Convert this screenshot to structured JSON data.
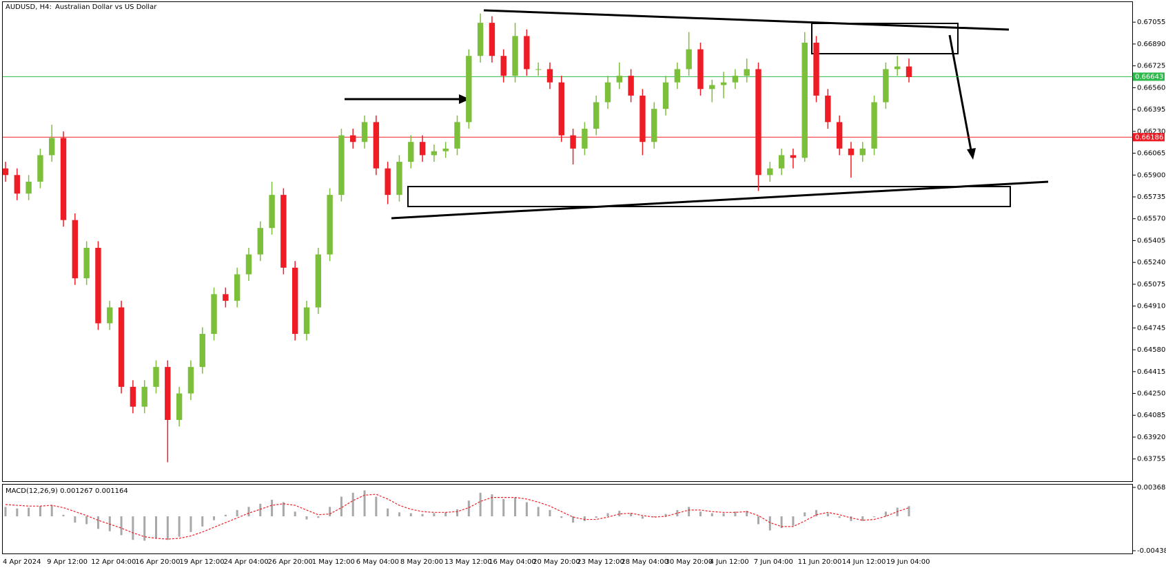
{
  "chart_data": [
    {
      "type": "candlestick",
      "symbol": "AUDUSD, H4:",
      "title": "Australian Dollar vs US Dollar",
      "up_color": "#7cbf3a",
      "down_color": "#ee1c25",
      "ylim": [
        0.63587,
        0.67212
      ],
      "yticks": [
        0.67055,
        {
          "value": 0.6689,
          "label": "0.66890"
        },
        0.66725,
        {
          "value": 0.6656,
          "label": "0.66560"
        },
        0.66395,
        {
          "value": 0.6623,
          "label": "0.66230"
        },
        0.66065,
        {
          "value": 0.659,
          "label": "0.65900"
        },
        0.65735,
        {
          "value": 0.6557,
          "label": "0.65570"
        },
        0.65405,
        {
          "value": 0.6524,
          "label": "0.65240"
        },
        0.65075,
        {
          "value": 0.6491,
          "label": "0.64910"
        },
        0.64745,
        {
          "value": 0.6458,
          "label": "0.64580"
        },
        0.64415,
        {
          "value": 0.6425,
          "label": "0.64250"
        },
        0.64085,
        {
          "value": 0.6392,
          "label": "0.63920"
        },
        0.63755
      ],
      "hlines": [
        {
          "value": 0.66643,
          "color": "#2db84a"
        },
        {
          "value": 0.66186,
          "color": "#ee1c25"
        }
      ],
      "x_labels": [
        "4 Apr 2024",
        "9 Apr 12:00",
        "12 Apr 04:00",
        "16 Apr 20:00",
        "19 Apr 12:00",
        "24 Apr 04:00",
        "26 Apr 20:00",
        "1 May 12:00",
        "6 May 04:00",
        "8 May 20:00",
        "13 May 12:00",
        "16 May 04:00",
        "20 May 20:00",
        "23 May 12:00",
        "28 May 04:00",
        "30 May 20:00",
        "4 Jun 12:00",
        "7 Jun 04:00",
        "11 Jun 20:00",
        "14 Jun 12:00",
        "19 Jun 04:00"
      ],
      "ohlc": [
        [
          0.6595,
          0.66,
          0.6585,
          0.659
        ],
        [
          0.659,
          0.6595,
          0.6571,
          0.6576
        ],
        [
          0.6576,
          0.659,
          0.6571,
          0.6585
        ],
        [
          0.6585,
          0.661,
          0.658,
          0.6605
        ],
        [
          0.6605,
          0.6628,
          0.66,
          0.6618
        ],
        [
          0.6618,
          0.6623,
          0.6551,
          0.6556
        ],
        [
          0.6556,
          0.6561,
          0.6507,
          0.6512
        ],
        [
          0.6512,
          0.654,
          0.6507,
          0.6535
        ],
        [
          0.6535,
          0.654,
          0.6473,
          0.6478
        ],
        [
          0.6478,
          0.6495,
          0.6473,
          0.649
        ],
        [
          0.649,
          0.6495,
          0.6425,
          0.643
        ],
        [
          0.643,
          0.6435,
          0.641,
          0.6415
        ],
        [
          0.6415,
          0.6435,
          0.641,
          0.643
        ],
        [
          0.643,
          0.645,
          0.6425,
          0.6445
        ],
        [
          0.6445,
          0.645,
          0.6373,
          0.6405
        ],
        [
          0.6405,
          0.643,
          0.64,
          0.6425
        ],
        [
          0.6425,
          0.645,
          0.642,
          0.6445
        ],
        [
          0.6445,
          0.6475,
          0.644,
          0.647
        ],
        [
          0.647,
          0.6505,
          0.6465,
          0.65
        ],
        [
          0.65,
          0.6505,
          0.649,
          0.6495
        ],
        [
          0.6495,
          0.652,
          0.649,
          0.6515
        ],
        [
          0.6515,
          0.6535,
          0.651,
          0.653
        ],
        [
          0.653,
          0.6555,
          0.6525,
          0.655
        ],
        [
          0.655,
          0.6585,
          0.6545,
          0.6575
        ],
        [
          0.6575,
          0.658,
          0.6515,
          0.652
        ],
        [
          0.652,
          0.6525,
          0.6465,
          0.647
        ],
        [
          0.647,
          0.6495,
          0.6465,
          0.649
        ],
        [
          0.649,
          0.6535,
          0.6485,
          0.653
        ],
        [
          0.653,
          0.658,
          0.6525,
          0.6575
        ],
        [
          0.6575,
          0.6625,
          0.657,
          0.662
        ],
        [
          0.662,
          0.6625,
          0.661,
          0.6615
        ],
        [
          0.6615,
          0.6635,
          0.661,
          0.663
        ],
        [
          0.663,
          0.6635,
          0.659,
          0.6595
        ],
        [
          0.6595,
          0.66,
          0.6568,
          0.6575
        ],
        [
          0.6575,
          0.6605,
          0.657,
          0.66
        ],
        [
          0.66,
          0.662,
          0.6595,
          0.6615
        ],
        [
          0.6615,
          0.662,
          0.66,
          0.6605
        ],
        [
          0.6605,
          0.6613,
          0.66,
          0.6608
        ],
        [
          0.6608,
          0.6615,
          0.6603,
          0.661
        ],
        [
          0.661,
          0.6635,
          0.6605,
          0.663
        ],
        [
          0.663,
          0.6685,
          0.6625,
          0.668
        ],
        [
          0.668,
          0.6712,
          0.6675,
          0.6705
        ],
        [
          0.6705,
          0.671,
          0.6675,
          0.668
        ],
        [
          0.668,
          0.6685,
          0.666,
          0.6665
        ],
        [
          0.6665,
          0.6705,
          0.666,
          0.6695
        ],
        [
          0.6695,
          0.67,
          0.6665,
          0.667
        ],
        [
          0.667,
          0.6675,
          0.6665,
          0.667
        ],
        [
          0.667,
          0.6675,
          0.6655,
          0.666
        ],
        [
          0.666,
          0.6665,
          0.6615,
          0.662
        ],
        [
          0.662,
          0.6625,
          0.6598,
          0.661
        ],
        [
          0.661,
          0.663,
          0.6605,
          0.6625
        ],
        [
          0.6625,
          0.665,
          0.662,
          0.6645
        ],
        [
          0.6645,
          0.6665,
          0.664,
          0.666
        ],
        [
          0.666,
          0.6675,
          0.6655,
          0.6665
        ],
        [
          0.6665,
          0.667,
          0.6645,
          0.665
        ],
        [
          0.665,
          0.6655,
          0.6605,
          0.6615
        ],
        [
          0.6615,
          0.6645,
          0.661,
          0.664
        ],
        [
          0.664,
          0.6665,
          0.6635,
          0.666
        ],
        [
          0.666,
          0.6675,
          0.6655,
          0.667
        ],
        [
          0.667,
          0.6698,
          0.6665,
          0.6685
        ],
        [
          0.6685,
          0.669,
          0.665,
          0.6655
        ],
        [
          0.6655,
          0.6662,
          0.6645,
          0.6658
        ],
        [
          0.6658,
          0.6668,
          0.6648,
          0.666
        ],
        [
          0.666,
          0.667,
          0.6655,
          0.6665
        ],
        [
          0.6665,
          0.6678,
          0.666,
          0.667
        ],
        [
          0.667,
          0.6675,
          0.6578,
          0.659
        ],
        [
          0.659,
          0.66,
          0.6585,
          0.6595
        ],
        [
          0.6595,
          0.661,
          0.659,
          0.6605
        ],
        [
          0.6605,
          0.661,
          0.6595,
          0.6603
        ],
        [
          0.6603,
          0.6698,
          0.66,
          0.669
        ],
        [
          0.669,
          0.6695,
          0.6645,
          0.665
        ],
        [
          0.665,
          0.6655,
          0.6625,
          0.663
        ],
        [
          0.663,
          0.6635,
          0.6605,
          0.661
        ],
        [
          0.661,
          0.6615,
          0.6588,
          0.6605
        ],
        [
          0.6605,
          0.6615,
          0.66,
          0.661
        ],
        [
          0.661,
          0.665,
          0.6605,
          0.6645
        ],
        [
          0.6645,
          0.6675,
          0.664,
          0.667
        ],
        [
          0.667,
          0.668,
          0.6665,
          0.6672
        ],
        [
          0.6672,
          0.6678,
          0.666,
          0.6664
        ]
      ]
    },
    {
      "type": "macd",
      "title": "MACD(12,26,9)",
      "macd_value": 0.001267,
      "signal_value": 0.001164,
      "histogram_color": "#a8a8a8",
      "signal_color": "#ee1c25",
      "ylim": [
        -0.00438,
        0.003682
      ],
      "yticks": [
        0.003682,
        {
          "value": -0.00438,
          "label": "-0.004380"
        }
      ],
      "histogram": [
        0.0012,
        0.001,
        0.0011,
        0.0013,
        0.0014,
        0.0002,
        -0.0008,
        -0.001,
        -0.0016,
        -0.0019,
        -0.0024,
        -0.003,
        -0.0031,
        -0.0028,
        -0.003,
        -0.0026,
        -0.002,
        -0.0013,
        -0.0005,
        0.0002,
        0.0008,
        0.0012,
        0.0016,
        0.0021,
        0.0018,
        0.0006,
        -0.0004,
        -0.0002,
        0.0012,
        0.0025,
        0.003,
        0.0033,
        0.0025,
        0.001,
        0.0005,
        0.0004,
        0.0003,
        0.0004,
        0.0005,
        0.0009,
        0.002,
        0.003,
        0.0028,
        0.0022,
        0.0024,
        0.0018,
        0.0012,
        0.0008,
        -0.0002,
        -0.0008,
        -0.0006,
        -0.0002,
        0.0004,
        0.0007,
        0.0004,
        -0.0003,
        -0.0001,
        0.0003,
        0.0008,
        0.0012,
        0.0006,
        0.0004,
        0.0004,
        0.0006,
        0.0007,
        -0.001,
        -0.0018,
        -0.0015,
        -0.0012,
        0.0005,
        0.0008,
        0.0004,
        -0.0002,
        -0.0006,
        -0.0006,
        -0.0001,
        0.0006,
        0.0011,
        0.0013
      ],
      "signal": [
        0.0015,
        0.0014,
        0.0013,
        0.0013,
        0.0014,
        0.0011,
        0.0006,
        0.0001,
        -0.0005,
        -0.001,
        -0.0015,
        -0.0021,
        -0.0026,
        -0.0028,
        -0.0029,
        -0.0028,
        -0.0025,
        -0.002,
        -0.0014,
        -0.0008,
        -0.0002,
        0.0004,
        0.0009,
        0.0014,
        0.0016,
        0.0014,
        0.0008,
        0.0002,
        0.0003,
        0.0011,
        0.002,
        0.0027,
        0.0028,
        0.0022,
        0.0014,
        0.0009,
        0.0006,
        0.0005,
        0.0005,
        0.0006,
        0.0011,
        0.0019,
        0.0024,
        0.0024,
        0.0024,
        0.0022,
        0.0018,
        0.0013,
        0.0006,
        -0.0001,
        -0.0004,
        -0.0004,
        -0.0001,
        0.0003,
        0.0004,
        0.0001,
        -0.0001,
        0,
        0.0004,
        0.0008,
        0.0008,
        0.0006,
        0.0005,
        0.0005,
        0.0006,
        0.0001,
        -0.0008,
        -0.0013,
        -0.0013,
        -0.0006,
        0.0002,
        0.0005,
        0.0002,
        -0.0002,
        -0.0005,
        -0.0004,
        0,
        0.0006,
        0.0011
      ]
    }
  ]
}
